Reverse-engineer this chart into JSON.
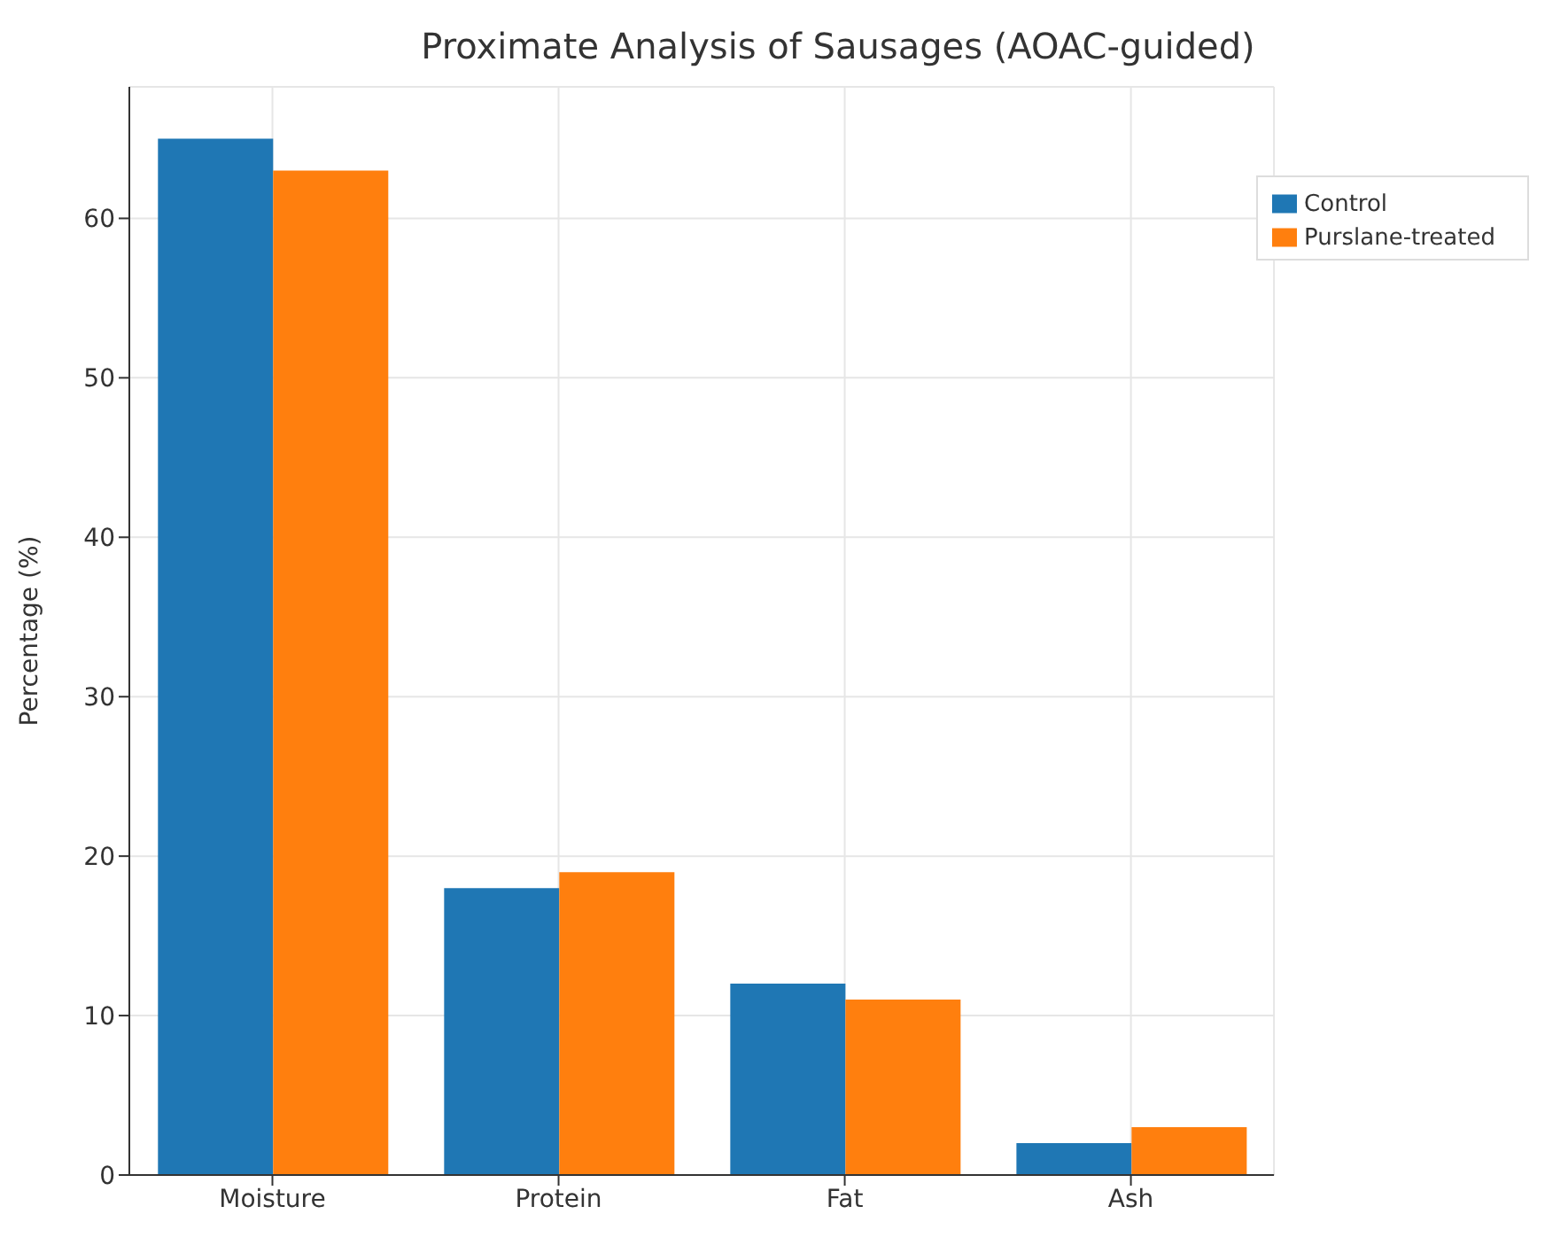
{
  "chart_data": {
    "type": "bar",
    "title": "Proximate Analysis of Sausages (AOAC-guided)",
    "ylabel": "Percentage (%)",
    "categories": [
      "Moisture",
      "Protein",
      "Fat",
      "Ash"
    ],
    "series": [
      {
        "name": "Control",
        "color": "#1f77b4",
        "values": [
          65,
          18,
          12,
          2
        ]
      },
      {
        "name": "Purslane-treated",
        "color": "#ff7f0e",
        "values": [
          63,
          19,
          11,
          3
        ]
      }
    ],
    "ylim": [
      0,
      68.25
    ],
    "yticks": [
      0,
      10,
      20,
      30,
      40,
      50,
      60
    ],
    "grid": true,
    "legend": "top right"
  }
}
